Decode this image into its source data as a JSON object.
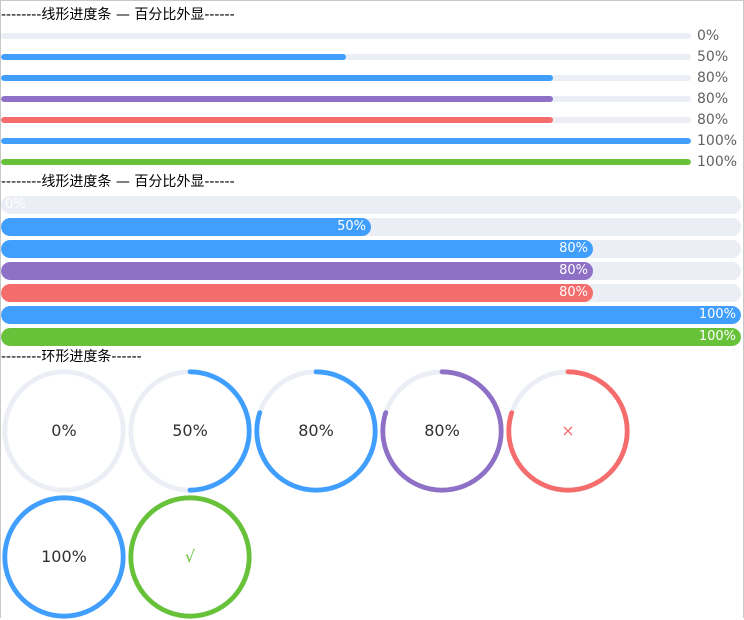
{
  "sections": {
    "line_outer_title": "--------线形进度条 — 百分比外显------",
    "line_inner_title": "--------线形进度条 — 百分比外显------",
    "circle_title": "--------环形进度条------"
  },
  "colors": {
    "track": "#ebeef5",
    "primary": "#409eff",
    "purple": "#8e71c7",
    "exception": "#f56c6c",
    "success": "#67c23a"
  },
  "line_outer": [
    {
      "percentage": 0,
      "label": "0%",
      "color": "#409eff"
    },
    {
      "percentage": 50,
      "label": "50%",
      "color": "#409eff"
    },
    {
      "percentage": 80,
      "label": "80%",
      "color": "#409eff"
    },
    {
      "percentage": 80,
      "label": "80%",
      "color": "#8e71c7"
    },
    {
      "percentage": 80,
      "label": "80%",
      "color": "#f56c6c"
    },
    {
      "percentage": 100,
      "label": "100%",
      "color": "#409eff"
    },
    {
      "percentage": 100,
      "label": "100%",
      "color": "#67c23a"
    }
  ],
  "line_inner": [
    {
      "percentage": 0,
      "label": "0%",
      "color": "#409eff"
    },
    {
      "percentage": 50,
      "label": "50%",
      "color": "#409eff"
    },
    {
      "percentage": 80,
      "label": "80%",
      "color": "#409eff"
    },
    {
      "percentage": 80,
      "label": "80%",
      "color": "#8e71c7"
    },
    {
      "percentage": 80,
      "label": "80%",
      "color": "#f56c6c"
    },
    {
      "percentage": 100,
      "label": "100%",
      "color": "#409eff"
    },
    {
      "percentage": 100,
      "label": "100%",
      "color": "#67c23a"
    }
  ],
  "circles": [
    {
      "percentage": 0,
      "label": "0%",
      "color": "#409eff",
      "text_color": "#303133",
      "icon": ""
    },
    {
      "percentage": 50,
      "label": "50%",
      "color": "#409eff",
      "text_color": "#303133",
      "icon": ""
    },
    {
      "percentage": 80,
      "label": "80%",
      "color": "#409eff",
      "text_color": "#303133",
      "icon": ""
    },
    {
      "percentage": 80,
      "label": "80%",
      "color": "#8e71c7",
      "text_color": "#303133",
      "icon": ""
    },
    {
      "percentage": 80,
      "label": "×",
      "color": "#f56c6c",
      "text_color": "#f56c6c",
      "icon": "close-icon"
    },
    {
      "percentage": 100,
      "label": "100%",
      "color": "#409eff",
      "text_color": "#303133",
      "icon": ""
    },
    {
      "percentage": 100,
      "label": "√",
      "color": "#67c23a",
      "text_color": "#67c23a",
      "icon": "check-icon"
    }
  ]
}
